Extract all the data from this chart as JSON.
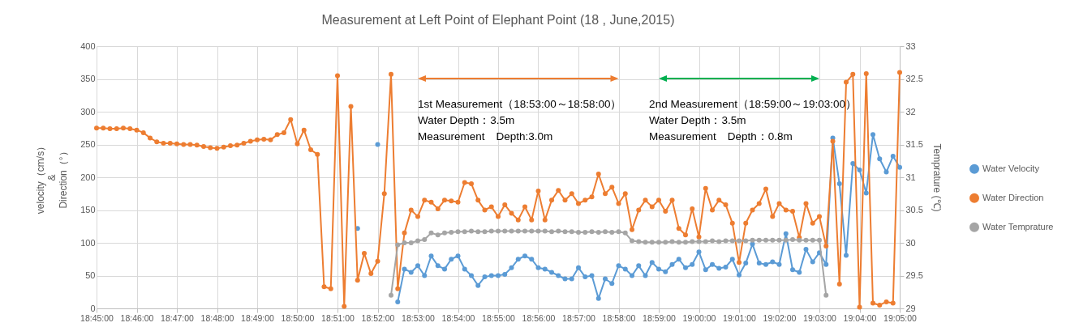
{
  "chart_data": {
    "type": "line",
    "title": "Measurement at Left Point of  Elephant Point (18 , June,2015)",
    "ylabel": "velocity（cm/s）\n&\nDirection（°）",
    "y2label": "Temprature (℃)",
    "x": [
      18.75,
      18.75278,
      18.75556,
      18.75833,
      18.76111,
      18.76389,
      18.76667,
      18.76944,
      18.77222,
      18.775,
      18.77778,
      18.78056,
      18.78333,
      18.78611,
      18.78889,
      18.79167,
      18.79444,
      18.79722,
      18.8,
      18.80278,
      18.80556,
      18.80833,
      18.81111,
      18.81389,
      18.81667,
      18.81944,
      18.82222,
      18.825,
      18.82778,
      18.83056,
      18.83333,
      18.83611,
      18.83889,
      18.84167,
      18.84444,
      18.84722,
      18.85,
      18.85278,
      18.85556,
      18.85833,
      18.86111,
      18.86389,
      18.86667,
      18.86944,
      18.87222,
      18.875,
      18.87778,
      18.88056,
      18.88333,
      18.88611,
      18.88889,
      18.89167,
      18.89444,
      18.89722,
      18.9,
      18.90278,
      18.90556,
      18.90833,
      18.91111,
      18.91389,
      18.91667,
      18.91944,
      18.92222,
      18.925,
      18.92778,
      18.93056,
      18.93333,
      18.93611,
      18.93889,
      18.94167,
      18.94444,
      18.94722,
      18.95,
      18.95278,
      18.95556,
      18.95833,
      18.96111,
      18.96389,
      18.96667,
      18.96944,
      18.97222,
      18.975,
      18.97778,
      18.98056,
      18.98333,
      18.98611,
      18.98889,
      18.99167,
      18.99444,
      18.99722,
      19.0,
      19.00278,
      19.00556,
      19.00833,
      19.01111,
      19.01389,
      19.01667,
      19.01944,
      19.02222,
      19.025,
      19.02778,
      19.03056,
      19.03333,
      19.03611,
      19.03889,
      19.04167,
      19.04444,
      19.04722,
      19.05,
      19.05278,
      19.05556,
      19.05833,
      19.06111,
      19.06389,
      19.06667,
      19.06944,
      19.07222,
      19.075,
      19.07778,
      19.08056,
      19.08333
    ],
    "series": [
      {
        "name": "Water Velocity",
        "color": "#5b9bd5",
        "values": [
          null,
          null,
          null,
          null,
          null,
          null,
          null,
          null,
          null,
          null,
          null,
          null,
          null,
          null,
          null,
          null,
          null,
          null,
          null,
          null,
          null,
          null,
          null,
          null,
          null,
          null,
          null,
          null,
          null,
          null,
          null,
          null,
          null,
          null,
          null,
          null,
          null,
          null,
          null,
          122,
          null,
          null,
          250,
          null,
          null,
          10,
          60,
          55,
          65,
          50,
          80,
          65,
          60,
          75,
          80,
          60,
          50,
          35,
          48,
          50,
          50,
          52,
          62,
          75,
          80,
          75,
          62,
          60,
          55,
          50,
          45,
          45,
          62,
          48,
          50,
          15,
          45,
          38,
          65,
          60,
          50,
          65,
          50,
          70,
          60,
          56,
          67,
          75,
          62,
          67,
          86,
          59,
          67,
          61,
          63,
          75,
          51,
          69,
          98,
          69,
          67,
          71,
          67,
          114,
          59,
          55,
          90,
          71,
          85,
          67,
          260,
          190,
          81,
          221,
          211,
          176,
          265,
          228,
          208,
          232,
          215
        ]
      },
      {
        "name": "Water Direction",
        "color": "#ed7d31",
        "values": [
          275,
          275,
          274,
          274,
          275,
          274,
          272,
          268,
          260,
          254,
          252,
          252,
          251,
          250,
          250,
          249,
          247,
          245,
          244,
          246,
          248,
          249,
          252,
          255,
          257,
          258,
          257,
          265,
          268,
          288,
          251,
          272,
          242,
          235,
          33,
          30,
          355,
          3,
          308,
          43,
          84,
          53,
          72,
          175,
          357,
          30,
          115,
          150,
          140,
          165,
          162,
          152,
          165,
          164,
          162,
          192,
          190,
          165,
          150,
          155,
          140,
          158,
          145,
          135,
          155,
          135,
          179,
          135,
          165,
          180,
          165,
          175,
          160,
          165,
          170,
          205,
          175,
          185,
          160,
          175,
          120,
          150,
          165,
          155,
          165,
          148,
          165,
          122,
          112,
          152,
          109,
          183,
          150,
          165,
          158,
          130,
          70,
          130,
          150,
          160,
          182,
          140,
          160,
          150,
          148,
          108,
          160,
          130,
          140,
          95,
          255,
          37,
          345,
          357,
          2,
          358,
          8,
          5,
          10,
          8,
          360
        ]
      },
      {
        "name": "Water Temprature",
        "color": "#a5a5a5",
        "axis": "y2",
        "values": [
          null,
          null,
          null,
          null,
          null,
          null,
          null,
          null,
          null,
          null,
          null,
          null,
          null,
          null,
          null,
          null,
          null,
          null,
          null,
          null,
          null,
          null,
          null,
          null,
          null,
          null,
          null,
          null,
          null,
          null,
          null,
          null,
          null,
          null,
          null,
          null,
          null,
          null,
          null,
          null,
          null,
          null,
          null,
          null,
          29.2,
          29.97,
          30.0,
          30.0,
          30.03,
          30.05,
          30.15,
          30.12,
          30.15,
          30.16,
          30.17,
          30.17,
          30.18,
          30.17,
          30.17,
          30.18,
          30.18,
          30.18,
          30.18,
          30.18,
          30.18,
          30.18,
          30.18,
          30.18,
          30.17,
          30.18,
          30.17,
          30.17,
          30.16,
          30.16,
          30.17,
          30.16,
          30.17,
          30.16,
          30.17,
          30.15,
          30.03,
          30.02,
          30.01,
          30.01,
          30.01,
          30.01,
          30.02,
          30.01,
          30.01,
          30.02,
          30.02,
          30.02,
          30.03,
          30.02,
          30.03,
          30.03,
          30.03,
          30.03,
          30.04,
          30.04,
          30.04,
          30.04,
          30.04,
          30.04,
          30.05,
          30.04,
          30.04,
          30.04,
          30.04,
          29.2,
          null,
          null,
          null,
          null,
          null,
          null,
          null,
          null,
          null,
          null,
          null
        ]
      }
    ],
    "xlim": [
      18.75,
      19.08333
    ],
    "xticks": [
      {
        "value": 18.75,
        "label": "18:45:00"
      },
      {
        "value": 18.76667,
        "label": "18:46:00"
      },
      {
        "value": 18.78333,
        "label": "18:47:00"
      },
      {
        "value": 18.8,
        "label": "18:48:00"
      },
      {
        "value": 18.81667,
        "label": "18:49:00"
      },
      {
        "value": 18.83333,
        "label": "18:50:00"
      },
      {
        "value": 18.85,
        "label": "18:51:00"
      },
      {
        "value": 18.86667,
        "label": "18:52:00"
      },
      {
        "value": 18.88333,
        "label": "18:53:00"
      },
      {
        "value": 18.9,
        "label": "18:54:00"
      },
      {
        "value": 18.91667,
        "label": "18:55:00"
      },
      {
        "value": 18.93333,
        "label": "18:56:00"
      },
      {
        "value": 18.95,
        "label": "18:57:00"
      },
      {
        "value": 18.96667,
        "label": "18:58:00"
      },
      {
        "value": 18.98333,
        "label": "18:59:00"
      },
      {
        "value": 19.0,
        "label": "19:00:00"
      },
      {
        "value": 19.01667,
        "label": "19:01:00"
      },
      {
        "value": 19.03333,
        "label": "19:02:00"
      },
      {
        "value": 19.05,
        "label": "19:03:00"
      },
      {
        "value": 19.06667,
        "label": "19:04:00"
      },
      {
        "value": 19.08333,
        "label": "19:05:00"
      }
    ],
    "ylim": [
      0,
      400
    ],
    "yticks": [
      0,
      50,
      100,
      150,
      200,
      250,
      300,
      350,
      400
    ],
    "y2lim": [
      29,
      33
    ],
    "y2ticks": [
      29,
      29.5,
      30,
      30.5,
      31,
      31.5,
      32,
      32.5,
      33
    ],
    "annotations": [
      "1st Measurement（18:53:00～18:58:00）\nWater Depth：3.5m\nMeasurement　Depth:3.0m",
      "2nd Measurement（18:59:00～19:03:00）\nWater Depth：3.5m\nMeasurement　Depth：0.8m"
    ],
    "grid": true,
    "legend": "right",
    "marker": "circle",
    "line_style": "solid"
  }
}
